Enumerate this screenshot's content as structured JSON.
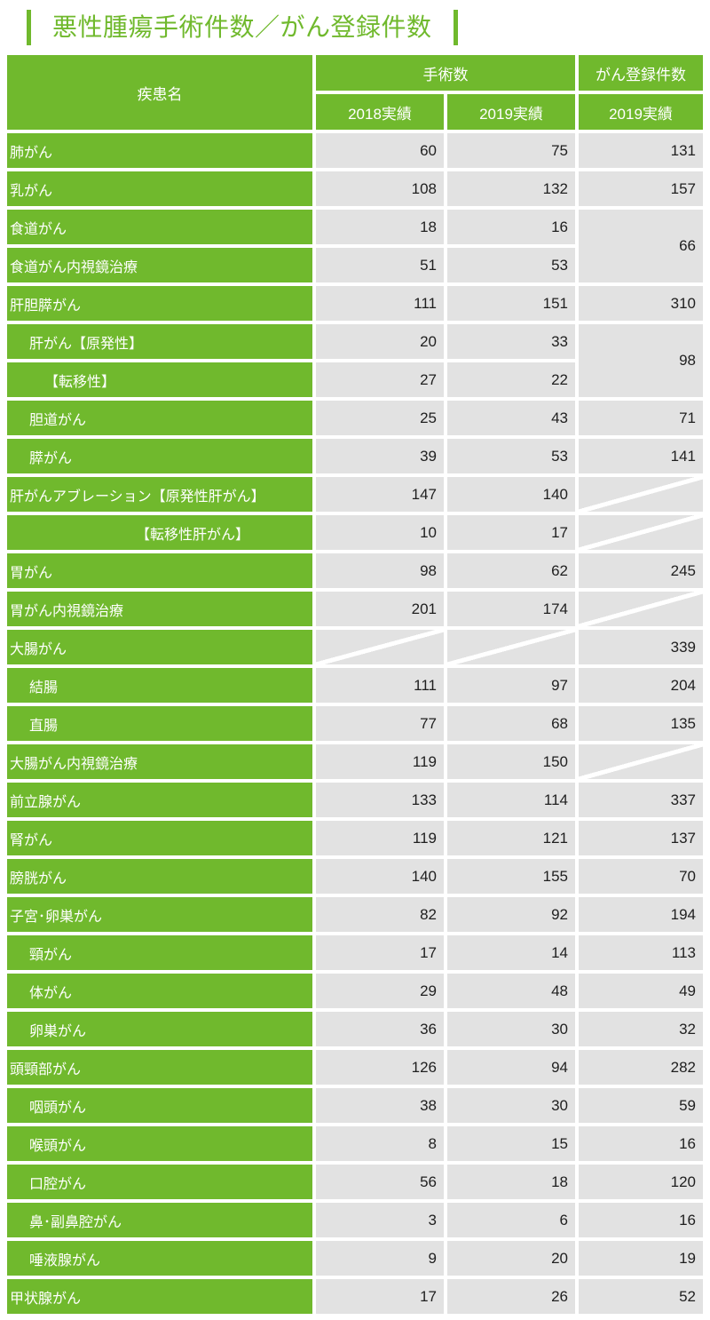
{
  "title": "悪性腫瘍手術件数／がん登録件数",
  "colors": {
    "accent_green": "#70B92D",
    "cell_gray": "#E2E2E2",
    "header_text": "#FFFFFF",
    "number_text": "#1F1F1F"
  },
  "no_data_marker": "/",
  "table": {
    "header": {
      "disease": "疾患名",
      "surgery_group": "手術数",
      "registration_group": "がん登録件数",
      "col_2018": "2018実績",
      "col_2019": "2019実績",
      "col_reg_2019": "2019実績"
    },
    "rows": [
      {
        "label": "肺がん",
        "indent": 0,
        "s2018": "60",
        "s2019": "75",
        "reg": "131"
      },
      {
        "label": "乳がん",
        "indent": 0,
        "s2018": "108",
        "s2019": "132",
        "reg": "157"
      },
      {
        "label": "食道がん",
        "indent": 0,
        "s2018": "18",
        "s2019": "16",
        "reg": "66",
        "reg_rowspan": 2
      },
      {
        "label": "食道がん内視鏡治療",
        "indent": 0,
        "s2018": "51",
        "s2019": "53",
        "reg": "skip"
      },
      {
        "label": "肝胆膵がん",
        "indent": 0,
        "s2018": "111",
        "s2019": "151",
        "reg": "310"
      },
      {
        "label": "肝がん【原発性】",
        "indent": 1,
        "s2018": "20",
        "s2019": "33",
        "reg": "98",
        "reg_rowspan": 2
      },
      {
        "label": "【転移性】",
        "indent": 2,
        "s2018": "27",
        "s2019": "22",
        "reg": "skip"
      },
      {
        "label": "胆道がん",
        "indent": 1,
        "s2018": "25",
        "s2019": "43",
        "reg": "71"
      },
      {
        "label": "膵がん",
        "indent": 1,
        "s2018": "39",
        "s2019": "53",
        "reg": "141"
      },
      {
        "label": "肝がんアブレーション【原発性肝がん】",
        "indent": 0,
        "s2018": "147",
        "s2019": "140",
        "reg": "/"
      },
      {
        "label": "【転移性肝がん】",
        "indent": 3,
        "s2018": "10",
        "s2019": "17",
        "reg": "/"
      },
      {
        "label": "胃がん",
        "indent": 0,
        "s2018": "98",
        "s2019": "62",
        "reg": "245"
      },
      {
        "label": "胃がん内視鏡治療",
        "indent": 0,
        "s2018": "201",
        "s2019": "174",
        "reg": "/"
      },
      {
        "label": "大腸がん",
        "indent": 0,
        "s2018": "/",
        "s2019": "/",
        "reg": "339"
      },
      {
        "label": "結腸",
        "indent": 1,
        "s2018": "111",
        "s2019": "97",
        "reg": "204"
      },
      {
        "label": "直腸",
        "indent": 1,
        "s2018": "77",
        "s2019": "68",
        "reg": "135"
      },
      {
        "label": "大腸がん内視鏡治療",
        "indent": 0,
        "s2018": "119",
        "s2019": "150",
        "reg": "/"
      },
      {
        "label": "前立腺がん",
        "indent": 0,
        "s2018": "133",
        "s2019": "114",
        "reg": "337"
      },
      {
        "label": "腎がん",
        "indent": 0,
        "s2018": "119",
        "s2019": "121",
        "reg": "137"
      },
      {
        "label": "膀胱がん",
        "indent": 0,
        "s2018": "140",
        "s2019": "155",
        "reg": "70"
      },
      {
        "label": "子宮･卵巣がん",
        "indent": 0,
        "s2018": "82",
        "s2019": "92",
        "reg": "194"
      },
      {
        "label": "頸がん",
        "indent": 1,
        "s2018": "17",
        "s2019": "14",
        "reg": "113"
      },
      {
        "label": "体がん",
        "indent": 1,
        "s2018": "29",
        "s2019": "48",
        "reg": "49"
      },
      {
        "label": "卵巣がん",
        "indent": 1,
        "s2018": "36",
        "s2019": "30",
        "reg": "32"
      },
      {
        "label": "頭頸部がん",
        "indent": 0,
        "s2018": "126",
        "s2019": "94",
        "reg": "282"
      },
      {
        "label": "咽頭がん",
        "indent": 1,
        "s2018": "38",
        "s2019": "30",
        "reg": "59"
      },
      {
        "label": "喉頭がん",
        "indent": 1,
        "s2018": "8",
        "s2019": "15",
        "reg": "16"
      },
      {
        "label": "口腔がん",
        "indent": 1,
        "s2018": "56",
        "s2019": "18",
        "reg": "120"
      },
      {
        "label": "鼻･副鼻腔がん",
        "indent": 1,
        "s2018": "3",
        "s2019": "6",
        "reg": "16"
      },
      {
        "label": "唾液腺がん",
        "indent": 1,
        "s2018": "9",
        "s2019": "20",
        "reg": "19"
      },
      {
        "label": "甲状腺がん",
        "indent": 0,
        "s2018": "17",
        "s2019": "26",
        "reg": "52"
      }
    ]
  }
}
